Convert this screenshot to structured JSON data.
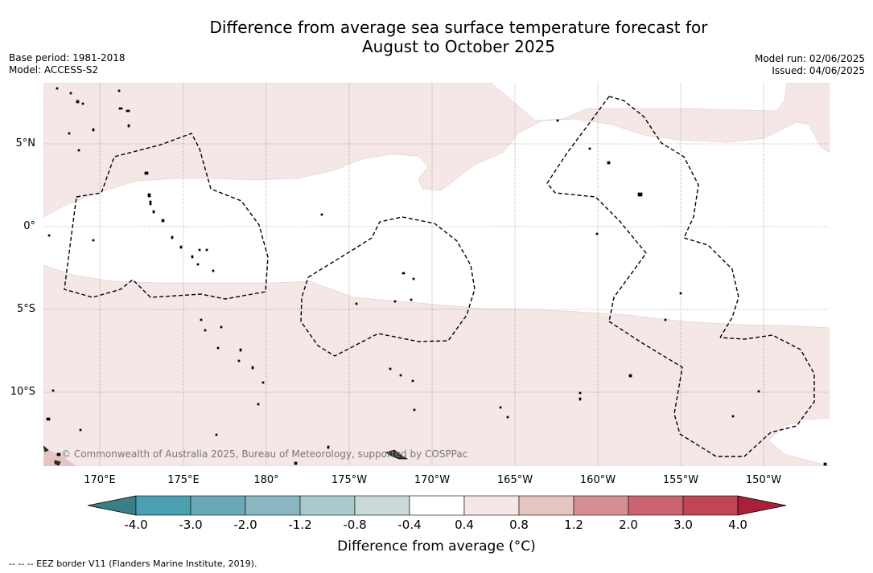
{
  "title": {
    "line1": "Difference from average sea surface temperature forecast for",
    "line2": "August to October 2025"
  },
  "meta_left": {
    "base_period": "Base period: 1981-2018",
    "model": "Model: ACCESS-S2"
  },
  "meta_right": {
    "model_run": "Model run: 02/06/2025",
    "issued": "Issued: 04/06/2025"
  },
  "map": {
    "lat_labels": [
      "5°N",
      "0°",
      "5°S",
      "10°S"
    ],
    "lon_labels": [
      "170°E",
      "175°E",
      "180°",
      "175°W",
      "170°W",
      "165°W",
      "160°W",
      "155°W",
      "150°W"
    ],
    "copyright": "© Commonwealth of Australia 2025, Bureau of Meteorology, supported by COSPPac",
    "fill_colors": {
      "land_bg": "#ffffff",
      "anomaly_light": "#f4e7e6",
      "anomaly_medium": "#e6c5c0",
      "eez_border": "#000000"
    }
  },
  "colorbar": {
    "title": "Difference from average (°C)",
    "ticks": [
      "-4.0",
      "-3.0",
      "-2.0",
      "-1.2",
      "-0.8",
      "-0.4",
      "0.4",
      "0.8",
      "1.2",
      "2.0",
      "3.0",
      "4.0"
    ],
    "colors": [
      "#3a7f86",
      "#4aa0b1",
      "#6ca9b8",
      "#8ab6c1",
      "#abc8cc",
      "#cbd8d8",
      "#ffffff",
      "#f4e7e6",
      "#e6c5c0",
      "#d58e94",
      "#c96470",
      "#be4655",
      "#a8203a"
    ]
  },
  "footnote": "--  --  -- EEZ border V11 (Flanders Marine Institute, 2019)."
}
